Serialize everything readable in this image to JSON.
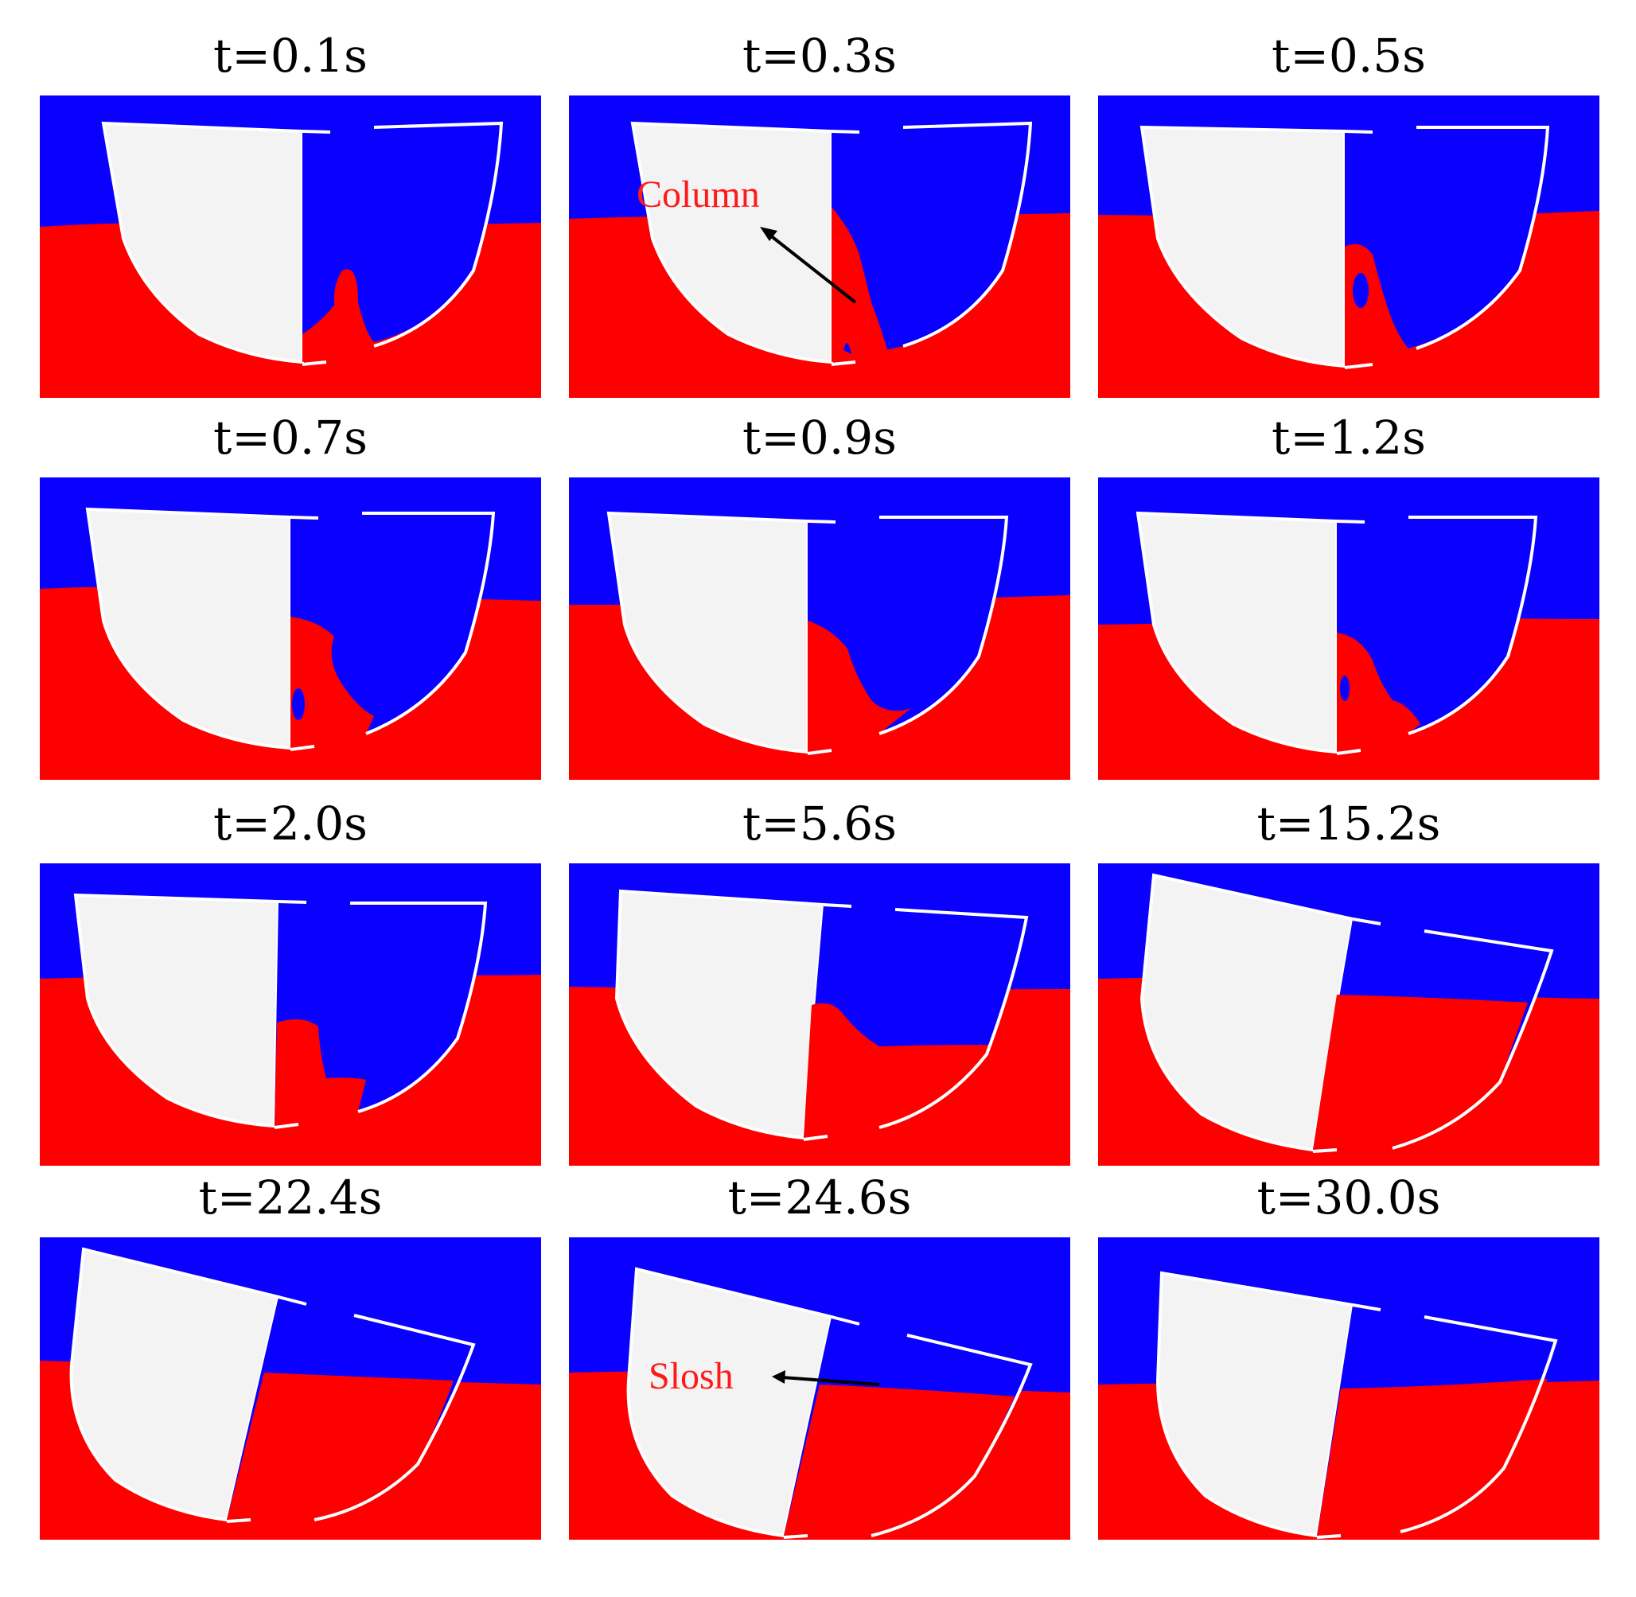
{
  "colors": {
    "air": "#0a00ff",
    "water": "#ff0000",
    "hull_fill": "#f3f3f3",
    "hull_edge": "#ffffff",
    "label": "#ff1a1a",
    "arrow": "#000000"
  },
  "panels": [
    {
      "title": "t=0.1s"
    },
    {
      "title": "t=0.3s",
      "annotation": "Column"
    },
    {
      "title": "t=0.5s"
    },
    {
      "title": "t=0.7s"
    },
    {
      "title": "t=0.9s"
    },
    {
      "title": "t=1.2s"
    },
    {
      "title": "t=2.0s"
    },
    {
      "title": "t=5.6s"
    },
    {
      "title": "t=15.2s"
    },
    {
      "title": "t=22.4s"
    },
    {
      "title": "t=24.6s",
      "annotation": "Slosh"
    },
    {
      "title": "t=30.0s"
    }
  ]
}
